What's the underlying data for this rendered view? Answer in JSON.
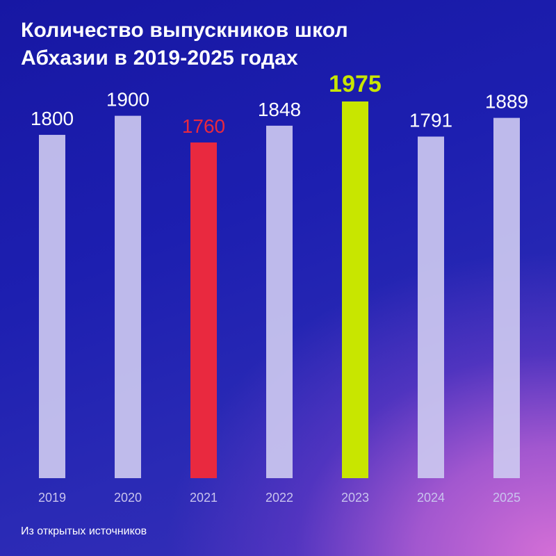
{
  "title_lines": [
    "Количество выпускников школ",
    "Абхазии в 2019-2025 годах"
  ],
  "source": "Из открытых источников",
  "chart_data": {
    "type": "bar",
    "categories": [
      "2019",
      "2020",
      "2021",
      "2022",
      "2023",
      "2024",
      "2025"
    ],
    "values": [
      1800,
      1900,
      1760,
      1848,
      1975,
      1791,
      1889
    ],
    "ylim": [
      0,
      2037
    ],
    "grid": false,
    "legend": "none",
    "colors": {
      "default_bar": "#ccc8f0",
      "default_label": "#ffffff",
      "highlight_min": "#e9293f",
      "highlight_max": "#c8e600",
      "tick_label": "#c9c4ee"
    },
    "highlights": {
      "2021": "highlight_min",
      "2023": "highlight_max"
    }
  }
}
